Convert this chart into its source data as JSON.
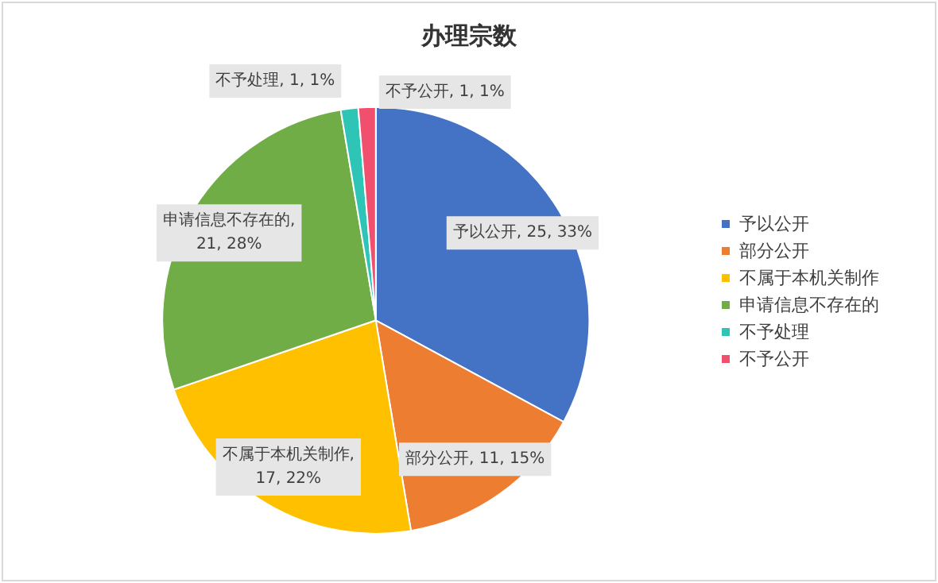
{
  "chart_data": {
    "type": "pie",
    "title": "办理宗数",
    "categories": [
      "予以公开",
      "部分公开",
      "不属于本机关制作",
      "申请信息不存在的",
      "不予处理",
      "不予公开"
    ],
    "values": [
      25,
      11,
      17,
      21,
      1,
      1
    ],
    "value_labels": [
      "予以公开, 25, 33%",
      "部分公开, 11, 15%",
      "不属于本机关制作, 17, 22%",
      "申请信息不存在的, 21, 28%",
      "不予处理, 1, 1%",
      "不予公开, 1, 1%"
    ],
    "colors": [
      "#4472c4",
      "#ed7d31",
      "#ffc000",
      "#70ad47",
      "#2ec4b6",
      "#f0506e"
    ],
    "legend": "right"
  }
}
